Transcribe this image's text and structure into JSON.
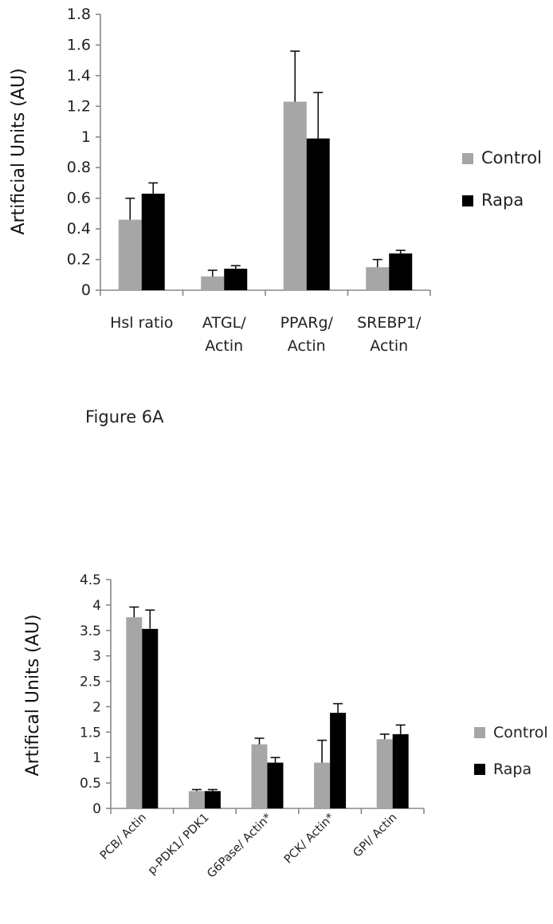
{
  "caption": "Figure 6A",
  "chart_data": [
    {
      "type": "bar",
      "ylabel": "Artificial Units (AU)",
      "ylim": [
        0,
        1.8
      ],
      "yticks": [
        "0",
        "0.2",
        "0.4",
        "0.6",
        "0.8",
        "1",
        "1.2",
        "1.4",
        "1.6",
        "1.8"
      ],
      "categories": [
        [
          "Hsl ratio"
        ],
        [
          "ATGL/",
          "Actin"
        ],
        [
          "PPARg/",
          "Actin"
        ],
        [
          "SREBP1/",
          "Actin"
        ]
      ],
      "series": [
        {
          "name": "Control",
          "color": "#a6a6a6",
          "values": [
            0.46,
            0.09,
            1.23,
            0.15
          ],
          "errors": [
            0.14,
            0.04,
            0.33,
            0.05
          ]
        },
        {
          "name": "Rapa",
          "color": "#000000",
          "values": [
            0.63,
            0.14,
            0.99,
            0.24
          ],
          "errors": [
            0.07,
            0.02,
            0.3,
            0.02
          ]
        }
      ],
      "legend": "right"
    },
    {
      "type": "bar",
      "ylabel": "Artifical Units (AU)",
      "ylim": [
        0,
        4.5
      ],
      "yticks": [
        "0",
        "0.5",
        "1",
        "1.5",
        "2",
        "2.5",
        "3",
        "3.5",
        "4",
        "4.5"
      ],
      "categories": [
        "PCB/ Actin",
        "p-PDK1/ PDK1",
        "G6Pase/ Actin*",
        "PCK/ Actin*",
        "GPI/ Actin"
      ],
      "series": [
        {
          "name": "Control",
          "color": "#a6a6a6",
          "values": [
            3.76,
            0.34,
            1.26,
            0.9,
            1.36
          ],
          "errors": [
            0.2,
            0.03,
            0.12,
            0.44,
            0.1
          ]
        },
        {
          "name": "Rapa",
          "color": "#000000",
          "values": [
            3.53,
            0.34,
            0.9,
            1.88,
            1.46
          ],
          "errors": [
            0.37,
            0.03,
            0.1,
            0.18,
            0.18
          ]
        }
      ],
      "legend": "right"
    }
  ]
}
